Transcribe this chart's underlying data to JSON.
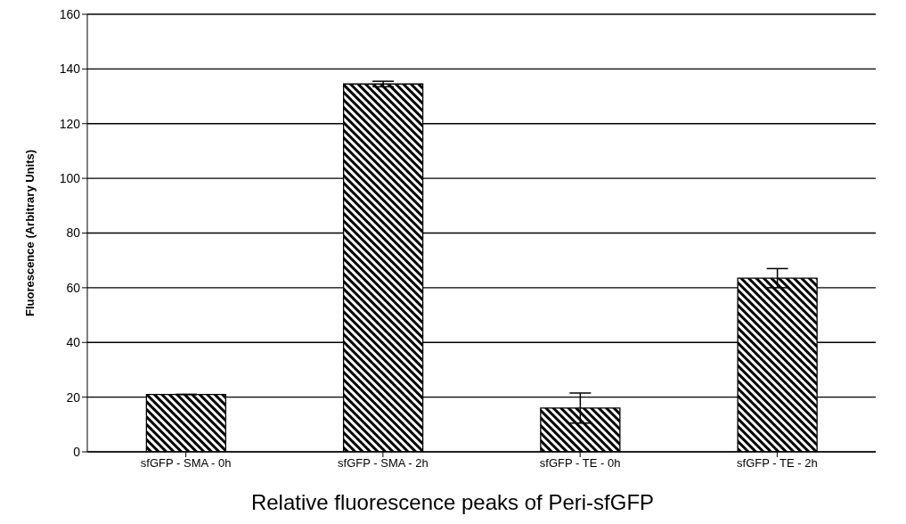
{
  "chart_data": {
    "type": "bar",
    "title": "Relative fluorescence peaks of Peri-sfGFP",
    "ylabel": "Fluorescence (Arbitrary Units)",
    "categories": [
      "sfGFP - SMA - 0h",
      "sfGFP - SMA - 2h",
      "sfGFP - TE - 0h",
      "sfGFP - TE - 2h"
    ],
    "values": [
      21,
      134.5,
      16,
      63.5
    ],
    "errors": [
      null,
      1,
      5.5,
      3.5
    ],
    "color": "#000000",
    "ylim": [
      0,
      160
    ],
    "yticks": [
      0,
      20,
      40,
      60,
      80,
      100,
      120,
      140,
      160
    ],
    "grid": "y",
    "legend": false
  }
}
